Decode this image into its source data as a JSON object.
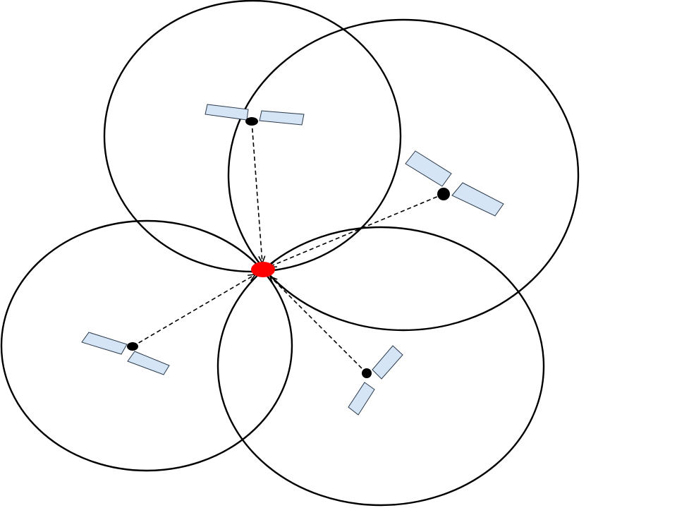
{
  "diagram": {
    "description_visible_text": "",
    "colors": {
      "background": "#ffffff",
      "circle_stroke": "#000000",
      "receiver": "#ff0000",
      "satellite_body": "#000000",
      "solar_panel": "#d5e5f5"
    },
    "elements": {
      "receiver": {
        "icon": "receiver-position-dot"
      },
      "satellites": [
        {
          "id": "satellite-1",
          "icon": "satellite-icon"
        },
        {
          "id": "satellite-2",
          "icon": "satellite-icon"
        },
        {
          "id": "satellite-3",
          "icon": "satellite-icon"
        },
        {
          "id": "satellite-4",
          "icon": "satellite-icon"
        }
      ],
      "signal_lines": 4,
      "range_circles": 4
    }
  }
}
